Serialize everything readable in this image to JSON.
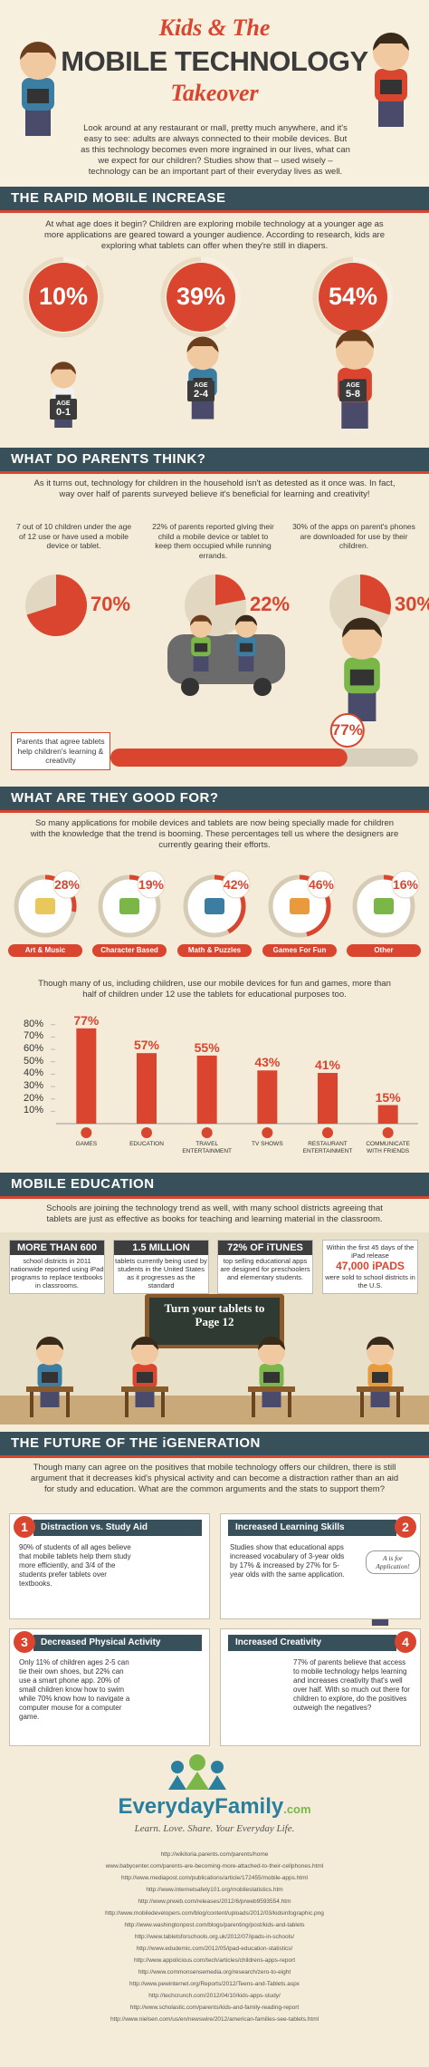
{
  "header": {
    "title_line1": "Kids & The",
    "title_line2": "MOBILE TECHNOLOGY",
    "title_line3": "Takeover",
    "intro": "Look around at any restaurant or mall, pretty much anywhere, and it's easy to see: adults are always connected to their mobile devices. But as this technology becomes even more ingrained in our lives, what can we expect for our children? Studies show that – used wisely – technology can be an important part of their everyday lives as well."
  },
  "rapid": {
    "heading": "THE RAPID MOBILE INCREASE",
    "text": "At what age does it begin? Children are exploring mobile technology at a younger age as more applications are geared toward a younger audience. According to research, kids are exploring what tablets can offer when they're still in diapers.",
    "stats": [
      {
        "value": 10,
        "label": "10%",
        "age": "AGE",
        "range": "0-1"
      },
      {
        "value": 39,
        "label": "39%",
        "age": "AGE",
        "range": "2-4"
      },
      {
        "value": 54,
        "label": "54%",
        "age": "AGE",
        "range": "5-8"
      }
    ]
  },
  "parents": {
    "heading": "WHAT DO PARENTS THINK?",
    "text": "As it turns out, technology for children in the household isn't as detested as it once was. In fact, way over half of parents surveyed believe it's beneficial for learning and creativity!",
    "stats": [
      {
        "text": "7 out of 10 children under the age of 12 use or have used a mobile device or tablet.",
        "value": 70,
        "label": "70%"
      },
      {
        "text": "22% of parents reported giving their child a mobile device or tablet to keep them occupied while running errands.",
        "value": 22,
        "label": "22%"
      },
      {
        "text": "30% of the apps on parent's phones are downloaded for use by their children.",
        "value": 30,
        "label": "30%"
      }
    ],
    "agree": {
      "text": "Parents that agree tablets help children's learning & creativity",
      "value": 77,
      "label": "77%"
    }
  },
  "good_for": {
    "heading": "WHAT ARE THEY GOOD FOR?",
    "text": "So many applications for mobile devices and tablets are now being specially made for children with the knowledge that the trend is booming. These percentages tell us where the designers are currently gearing their efforts.",
    "items": [
      {
        "name": "Art & Music",
        "value": 28,
        "label": "28%"
      },
      {
        "name": "Character Based",
        "value": 19,
        "label": "19%"
      },
      {
        "name": "Math & Puzzles",
        "value": 42,
        "label": "42%"
      },
      {
        "name": "Games For Fun",
        "value": 46,
        "label": "46%"
      },
      {
        "name": "Other",
        "value": 16,
        "label": "16%"
      }
    ],
    "chart_text": "Though many of us, including children, use our mobile devices for fun and games, more than half of children under 12 use the tablets for educational purposes too.",
    "usage_chart": {
      "type": "bar",
      "categories": [
        "GAMES",
        "EDUCATION",
        "TRAVEL ENTERTAINMENT",
        "TV SHOWS",
        "RESTAURANT ENTERTAINMENT",
        "COMMUNICATE WITH FRIENDS"
      ],
      "values": [
        77,
        57,
        55,
        43,
        41,
        15
      ],
      "value_labels": [
        "77%",
        "57%",
        "55%",
        "43%",
        "41%",
        "15%"
      ],
      "color": "#d9452e",
      "ylim": [
        0,
        82
      ],
      "yticks": [
        {
          "value": 10,
          "label": "10%"
        },
        {
          "value": 20,
          "label": "20%"
        },
        {
          "value": 30,
          "label": "30%"
        },
        {
          "value": 40,
          "label": "40%"
        },
        {
          "value": 50,
          "label": "50%"
        },
        {
          "value": 60,
          "label": "60%"
        },
        {
          "value": 70,
          "label": "70%"
        },
        {
          "value": 80,
          "label": "80%"
        }
      ],
      "grid": false
    }
  },
  "education": {
    "heading": "MOBILE EDUCATION",
    "text": "Schools are joining the technology trend as well, with many school districts agreeing that tablets are just as effective as books for teaching and learning material in the classroom.",
    "boxes": [
      {
        "big": "MORE THAN 600",
        "text": "school districts in 2011 nationwide reported using iPad programs to replace textbooks in classrooms."
      },
      {
        "big": "1.5 MILLION",
        "text": "tablets currently being used by students in the United States as it progresses as the standard"
      },
      {
        "big": "72% OF iTUNES",
        "text": "top selling educational apps are designed for preschoolers and elementary students."
      },
      {
        "text": "Within the first 45 days of the iPad release",
        "big": "47,000 iPADS",
        "text2": "were sold to school districts in the U.S."
      }
    ],
    "board": "Turn your tablets to Page 12"
  },
  "future": {
    "heading": "THE FUTURE OF THE iGENERATION",
    "text": "Though many can agree on the positives that mobile technology offers our children, there is still argument that it decreases kid's physical activity and can become a distraction rather than an aid for study and education. What are the common arguments and the stats to support them?",
    "boxes": [
      {
        "number": "1",
        "title": "Distraction vs. Study Aid",
        "text": "90% of students of all ages believe that mobile tablets help them study more efficiently, and 3/4 of the students prefer tablets over textbooks."
      },
      {
        "number": "2",
        "title": "Increased Learning Skills",
        "text": "Studies show that educational apps increased vocabulary of 3-year olds by 17% & increased by 27% for 5-year olds with the same application.",
        "bubble": "A is for Application!"
      },
      {
        "number": "3",
        "title": "Decreased Physical Activity",
        "text": "Only 11% of children ages 2-5 can tie their own shoes, but 22% can use a smart phone app. 20% of small children know how to swim while 70% know how to navigate a computer mouse for a computer game."
      },
      {
        "number": "4",
        "title": "Increased Creativity",
        "text": "77% of parents believe that access to mobile technology helps learning and increases creativity that's well over half. With so much out there for children to explore, do the positives outweigh the negatives?"
      }
    ]
  },
  "footer": {
    "brand": "EverydayFamily",
    "brand_suffix": ".com",
    "tagline": "Learn. Love. Share. Your Everyday Life.",
    "sources": [
      "http://wikitoria.parents.com/parents/home",
      "www.babycenter.com/parents-are-becoming-more-attached-to-their-cellphones.html",
      "http://www.mediapost.com/publications/article/172455/mobile-apps.html",
      "http://www.internetsafety101.org/mobilestatistics.htm",
      "http://www.prweb.com/releases/2012/6/prweb9593554.htm",
      "http://www.mobiledevelopers.com/blog/content/uploads/2012/03/kidsinfographic.png",
      "http://www.washingtonpost.com/blogs/parenting/post/kids-and-tablets",
      "http://www.tabletsforschools.org.uk/2012/07/ipads-in-schools/",
      "http://www.edudemic.com/2012/05/ipad-education-statistics/",
      "http://www.appolicious.com/tech/articles/childrens-apps-report",
      "http://www.commonsensemedia.org/research/zero-to-eight",
      "http://www.pewinternet.org/Reports/2012/Teens-and-Tablets.aspx",
      "http://techcrunch.com/2012/04/10/kids-apps-study/",
      "http://www.scholastic.com/parents/kids-and-family-reading-report",
      "http://www.nielsen.com/us/en/newswire/2012/american-families-see-tablets.html"
    ]
  }
}
